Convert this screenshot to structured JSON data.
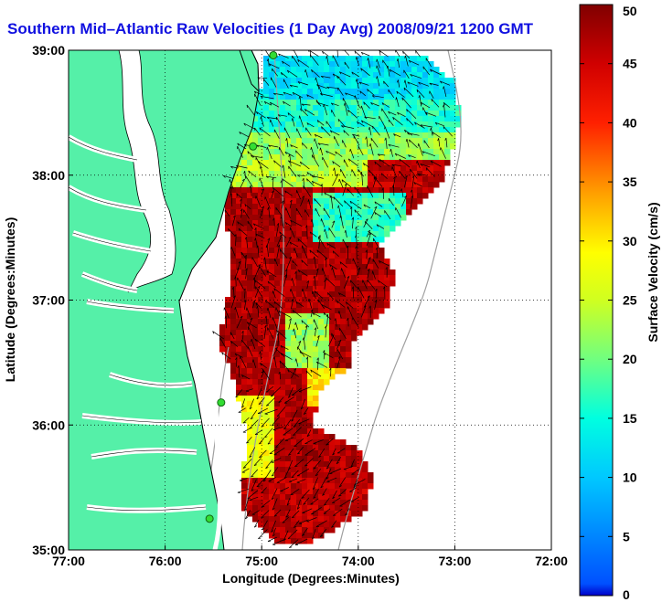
{
  "title": "Southern Mid–Atlantic Raw Velocities (1 Day Avg) 2008/09/21 1200 GMT",
  "map": {
    "xlabel": "Longitude (Degrees:Minutes)",
    "ylabel": "Latitude (Degrees:Minutes)",
    "lon_range": [
      -77,
      -72
    ],
    "lat_range": [
      35,
      39
    ],
    "x_ticks": [
      "77:00",
      "76:00",
      "75:00",
      "74:00",
      "73:00",
      "72:00"
    ],
    "y_ticks": [
      "35:00",
      "36:00",
      "37:00",
      "38:00",
      "39:00"
    ],
    "grid": "dotted",
    "land_color": "#55f0a8",
    "water_color": "#ffffff",
    "coastline_color": "#000000",
    "isobath_color": "#a0a0a0",
    "station_color": "#33dd33",
    "stations": [
      {
        "lon": -74.88,
        "lat": 38.96
      },
      {
        "lon": -75.09,
        "lat": 38.23
      },
      {
        "lon": -75.42,
        "lat": 36.18
      },
      {
        "lon": -75.54,
        "lat": 35.25
      }
    ]
  },
  "colorbar": {
    "label": "Surface Velocity (cm/s)",
    "min": 0,
    "max": 50,
    "ticks": [
      "0",
      "5",
      "10",
      "15",
      "20",
      "25",
      "30",
      "35",
      "40",
      "45",
      "50"
    ],
    "colormap": "jet"
  }
}
